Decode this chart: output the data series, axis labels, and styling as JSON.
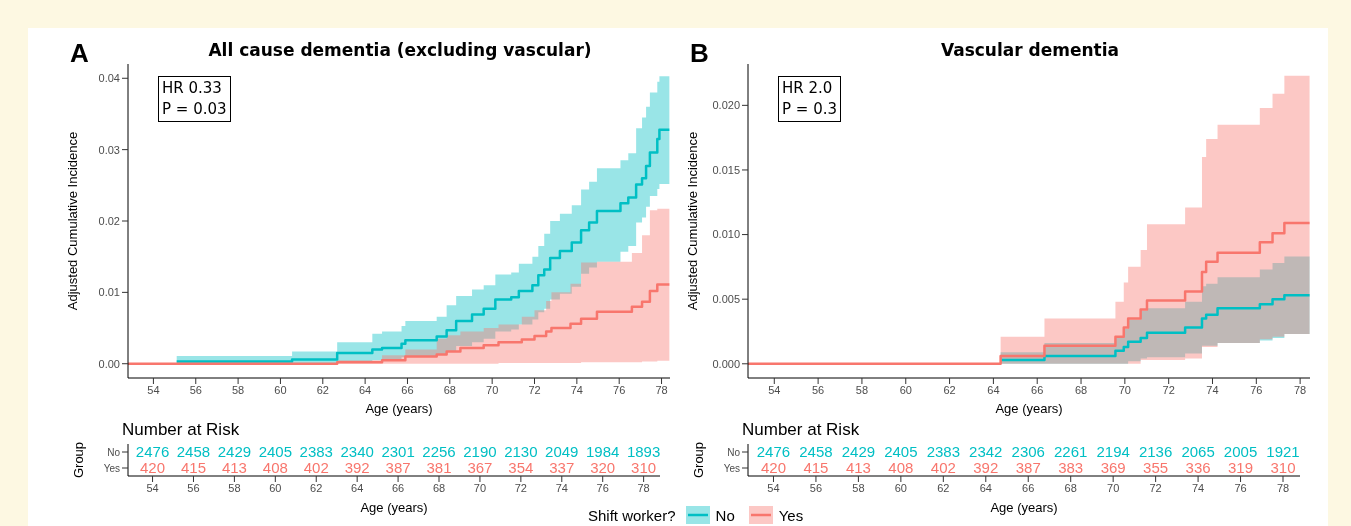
{
  "chart_data": [
    {
      "type": "step",
      "title": "All cause dementia (excluding vascular)",
      "xlabel": "Age (years)",
      "ylabel": "Adjusted Cumulative Incidence",
      "annotations": [
        "A",
        "HR 0.33",
        "P = 0.03"
      ],
      "legend": "bottom",
      "legend_title": "Shift worker?",
      "xlim": [
        52.8,
        78.4
      ],
      "xticks": [
        54,
        56,
        58,
        60,
        62,
        64,
        66,
        68,
        70,
        72,
        74,
        76,
        78
      ],
      "ylim": [
        -0.002,
        0.042
      ],
      "yticks": [
        {
          "value": 0,
          "label": "0.00"
        },
        {
          "value": 0.01,
          "label": "0.01"
        },
        {
          "value": 0.02,
          "label": "0.02"
        },
        {
          "value": 0.03,
          "label": "0.03"
        },
        {
          "value": 0.04,
          "label": "0.04"
        }
      ],
      "series": [
        {
          "name": "No",
          "color": "#00bfc4",
          "x": [
            55.1,
            60.55,
            62.68,
            64.34,
            64.8,
            65.72,
            65.9,
            67.38,
            67.85,
            68.3,
            69.05,
            69.6,
            70.15,
            70.9,
            71.26,
            71.9,
            72.18,
            72.46,
            72.74,
            73.2,
            73.76,
            74.2,
            74.58,
            74.95,
            76.06,
            76.43,
            76.8,
            77.08,
            77.27,
            77.45,
            77.8,
            77.9,
            78.37
          ],
          "values": [
            0.0003,
            0.0006,
            0.0015,
            0.002,
            0.0022,
            0.0028,
            0.0033,
            0.0038,
            0.0047,
            0.006,
            0.0069,
            0.0077,
            0.009,
            0.0093,
            0.0102,
            0.011,
            0.0124,
            0.0132,
            0.0148,
            0.0158,
            0.017,
            0.0187,
            0.0198,
            0.0214,
            0.0225,
            0.0233,
            0.0251,
            0.026,
            0.0277,
            0.0296,
            0.0315,
            0.0328,
            0.0328
          ],
          "lower": [
            0,
            0.0001,
            0.0003,
            0.0005,
            0.0006,
            0.0009,
            0.001,
            0.0013,
            0.0018,
            0.0025,
            0.003,
            0.0035,
            0.0045,
            0.0048,
            0.0055,
            0.0062,
            0.0072,
            0.0077,
            0.009,
            0.0098,
            0.0108,
            0.0126,
            0.0135,
            0.0143,
            0.0157,
            0.0165,
            0.0198,
            0.0205,
            0.022,
            0.0235,
            0.0245,
            0.0252,
            0.0252
          ],
          "upper": [
            0.0011,
            0.0017,
            0.003,
            0.0042,
            0.0045,
            0.0053,
            0.006,
            0.0066,
            0.0082,
            0.0095,
            0.0104,
            0.011,
            0.0125,
            0.0128,
            0.014,
            0.015,
            0.0165,
            0.0182,
            0.02,
            0.021,
            0.0222,
            0.0244,
            0.0255,
            0.0274,
            0.0285,
            0.0295,
            0.033,
            0.0345,
            0.036,
            0.038,
            0.0395,
            0.0403,
            0.0403
          ]
        },
        {
          "name": "Yes",
          "color": "#f8766d",
          "x": [
            52.8,
            62.68,
            64.8,
            65.9,
            67.38,
            67.85,
            68.5,
            69.6,
            70.3,
            71.4,
            72.0,
            72.55,
            72.8,
            73.7,
            74.2,
            74.95,
            76.6,
            77.08,
            77.45,
            77.8,
            78.37
          ],
          "values": [
            0,
            0.0002,
            0.0005,
            0.001,
            0.0013,
            0.0017,
            0.0022,
            0.0026,
            0.003,
            0.0034,
            0.0039,
            0.0045,
            0.005,
            0.0056,
            0.0063,
            0.0073,
            0.008,
            0.0087,
            0.0102,
            0.0111,
            0.0111
          ],
          "lower": [
            0,
            0,
            0,
            0,
            0,
            0,
            0,
            0,
            0.0001,
            0.0001,
            0.0001,
            0.0001,
            0.0001,
            0.0001,
            0.0002,
            0.0002,
            0.0002,
            0.0003,
            0.0003,
            0.0004,
            0.0004
          ],
          "upper": [
            0,
            0.0005,
            0.0012,
            0.002,
            0.0035,
            0.004,
            0.0045,
            0.005,
            0.0055,
            0.0066,
            0.0075,
            0.0088,
            0.01,
            0.0112,
            0.0142,
            0.0143,
            0.0155,
            0.018,
            0.0215,
            0.0217,
            0.0217
          ]
        }
      ]
    },
    {
      "type": "step",
      "title": "Vascular dementia",
      "xlabel": "Age (years)",
      "ylabel": "Adjusted Cumulative Incidence",
      "annotations": [
        "B",
        "HR 2.0",
        "P = 0.3"
      ],
      "xlim": [
        52.8,
        78.45
      ],
      "xticks": [
        54,
        56,
        58,
        60,
        62,
        64,
        66,
        68,
        70,
        72,
        74,
        76,
        78
      ],
      "ylim": [
        -0.0011,
        0.0232
      ],
      "yticks": [
        {
          "value": 0,
          "label": "0.000"
        },
        {
          "value": 0.005,
          "label": "0.005"
        },
        {
          "value": 0.01,
          "label": "0.010"
        },
        {
          "value": 0.015,
          "label": "0.015"
        },
        {
          "value": 0.02,
          "label": "0.020"
        }
      ],
      "series": [
        {
          "color": "#00bfc4",
          "x": [
            64.33,
            66.33,
            69.57,
            69.95,
            70.15,
            70.72,
            71.01,
            72.75,
            73.52,
            73.71,
            74.23,
            76.16,
            76.74,
            77.28,
            78.43
          ],
          "values": [
            0.0003,
            0.0006,
            0.001,
            0.0013,
            0.0017,
            0.002,
            0.0024,
            0.0028,
            0.0035,
            0.0038,
            0.0043,
            0.0046,
            0.005,
            0.0053,
            0.0053
          ],
          "lower": [
            0,
            0,
            0,
            0,
            0.0002,
            0.0004,
            0.0005,
            0.0008,
            0.0014,
            0.0014,
            0.0016,
            0.0018,
            0.002,
            0.0023,
            0.0023
          ],
          "upper": [
            0.0009,
            0.0016,
            0.0021,
            0.0027,
            0.0034,
            0.0041,
            0.0043,
            0.0048,
            0.006,
            0.0062,
            0.0067,
            0.0073,
            0.0078,
            0.0083,
            0.0083
          ]
        },
        {
          "color": "#f8766d",
          "x": [
            52.8,
            64.33,
            66.33,
            69.57,
            69.95,
            70.15,
            70.72,
            71.01,
            72.75,
            73.52,
            73.71,
            74.23,
            76.16,
            76.74,
            77.28,
            78.43
          ],
          "values": [
            0,
            0.0006,
            0.0014,
            0.0021,
            0.0028,
            0.0035,
            0.0042,
            0.0049,
            0.0056,
            0.0071,
            0.0079,
            0.0086,
            0.0094,
            0.0101,
            0.0109,
            0.0109
          ],
          "lower": [
            0,
            0,
            0,
            0,
            0,
            0,
            0.0003,
            0.0003,
            0.0004,
            0.0013,
            0.0013,
            0.0016,
            0.0019,
            0.0021,
            0.0023,
            0.0023
          ],
          "upper": [
            0,
            0.0021,
            0.0035,
            0.0048,
            0.0063,
            0.0075,
            0.0088,
            0.0108,
            0.0121,
            0.016,
            0.0174,
            0.0185,
            0.0198,
            0.0209,
            0.0223,
            0.0223
          ]
        }
      ]
    },
    {
      "type": "heatmap",
      "title": "Number at Risk",
      "xlabel": "Age (years)",
      "ylabel": "Group",
      "data_labels": true,
      "categories": [
        "54",
        "56",
        "58",
        "60",
        "62",
        "64",
        "66",
        "68",
        "70",
        "72",
        "74",
        "76",
        "78"
      ],
      "y_categories": [
        "No",
        "Yes"
      ],
      "cells": [
        [
          2476,
          2458,
          2429,
          2405,
          2383,
          2340,
          2301,
          2256,
          2190,
          2130,
          2049,
          1984,
          1893
        ],
        [
          420,
          415,
          413,
          408,
          402,
          392,
          387,
          381,
          367,
          354,
          337,
          320,
          310
        ]
      ]
    },
    {
      "type": "heatmap",
      "title": "Number at Risk",
      "xlabel": "Age (years)",
      "ylabel": "Group",
      "data_labels": true,
      "categories": [
        "54",
        "56",
        "58",
        "60",
        "62",
        "64",
        "66",
        "68",
        "70",
        "72",
        "74",
        "76",
        "78"
      ],
      "y_categories": [
        "No",
        "Yes"
      ],
      "cells": [
        [
          2476,
          2458,
          2429,
          2405,
          2383,
          2342,
          2306,
          2261,
          2194,
          2136,
          2065,
          2005,
          1921
        ],
        [
          420,
          415,
          413,
          408,
          402,
          392,
          387,
          383,
          369,
          355,
          336,
          319,
          310
        ]
      ]
    }
  ]
}
